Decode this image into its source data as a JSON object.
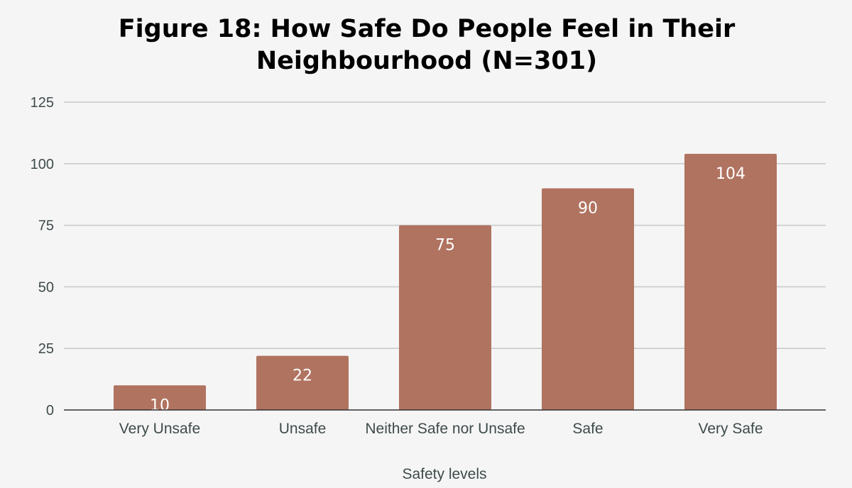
{
  "chart_data": {
    "type": "bar",
    "title": "Figure 18: How Safe Do People Feel in Their Neighbourhood (N=301)",
    "title_lines": [
      "Figure 18: How Safe Do People Feel in Their",
      "Neighbourhood (N=301)"
    ],
    "categories": [
      "Very Unsafe",
      "Unsafe",
      "Neither Safe nor Unsafe",
      "Safe",
      "Very Safe"
    ],
    "values": [
      10,
      22,
      75,
      90,
      104
    ],
    "xlabel": "Safety levels",
    "ylabel": "",
    "ylim": [
      0,
      125
    ],
    "yticks": [
      0,
      25,
      50,
      75,
      100,
      125
    ],
    "grid": true,
    "legend": "none",
    "bar_color": "#b07360",
    "data_label_color": "#ffffff"
  }
}
